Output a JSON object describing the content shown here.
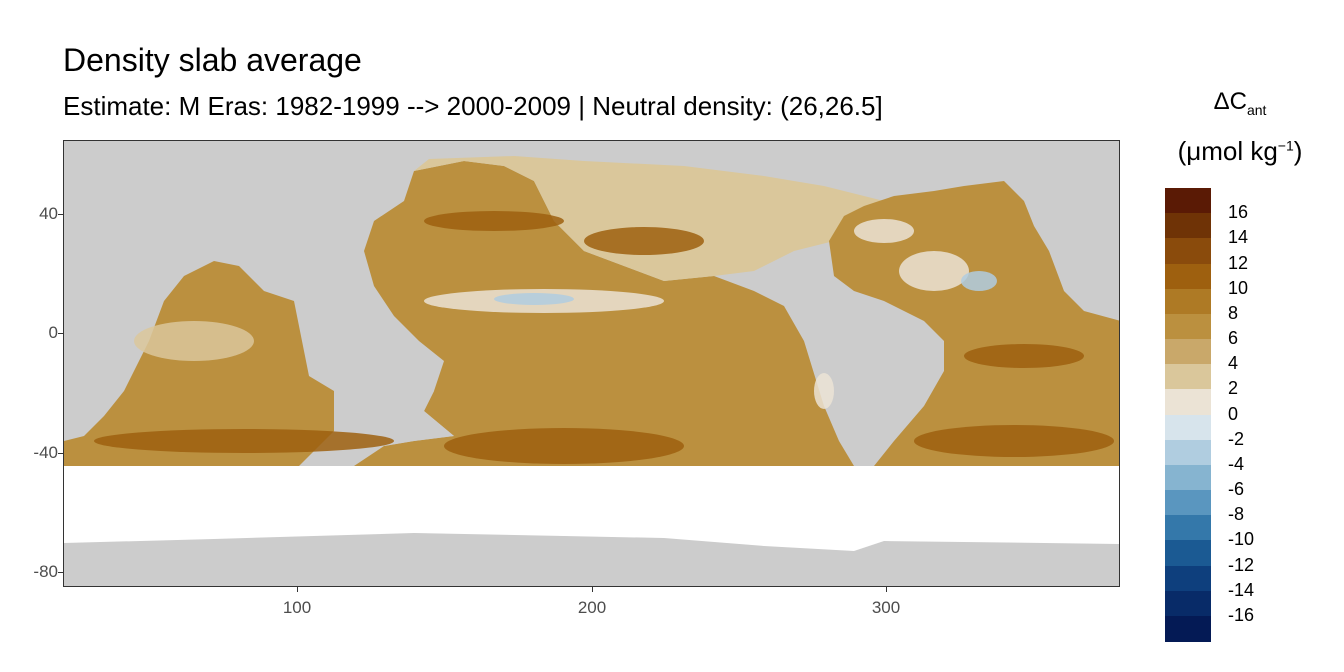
{
  "title": "Density slab average",
  "subtitle": "Estimate: M Eras: 1982-1999 --> 2000-2009 | Neutral density: (26,26.5]",
  "legend": {
    "symbol": "ΔC",
    "subscript": "ant",
    "unit_open": "(μmol kg",
    "unit_sup": "−1",
    "unit_close": ")",
    "labels": [
      "16",
      "14",
      "12",
      "10",
      "8",
      "6",
      "4",
      "2",
      "0",
      "-2",
      "-4",
      "-6",
      "-8",
      "-10",
      "-12",
      "-14",
      "-16"
    ],
    "colors": [
      "#5a1a05",
      "#6f3306",
      "#8a4b0c",
      "#9e600f",
      "#ae7a25",
      "#bb903f",
      "#c9a86a",
      "#dac79b",
      "#ebe3d5",
      "#d7e4ec",
      "#b0cde0",
      "#86b4d0",
      "#5a96bf",
      "#3478aa",
      "#1b5a93",
      "#0e3f7d",
      "#082b68",
      "#041a55"
    ]
  },
  "axes": {
    "x_ticks": [
      "100",
      "200",
      "300"
    ],
    "y_ticks": [
      "40",
      "0",
      "-40",
      "-80"
    ]
  },
  "map_colors": {
    "land": "#cccccc",
    "ocean_base": "#bb903f",
    "ocean_dark": "#9e600f",
    "ocean_light": "#dac79b",
    "ocean_neutral": "#ebe3d5",
    "ocean_blue": "#b0cde0",
    "no_data": "#ffffff"
  }
}
